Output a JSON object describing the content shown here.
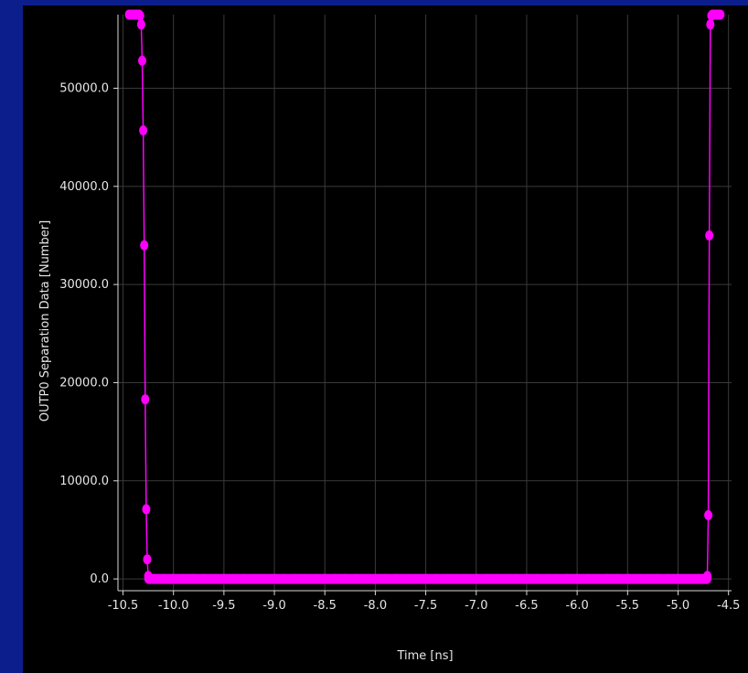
{
  "colors": {
    "frame_background": "#0c1e8c",
    "plot_background": "#000000",
    "series": "#ff00ff",
    "grid": "#3a3a3a",
    "text": "#e6e6e6"
  },
  "chart_data": {
    "type": "scatter",
    "title": "",
    "xlabel": "Time [ns]",
    "ylabel": "OUTP0 Separation Data [Number]",
    "xlim": [
      -10.55,
      -4.47
    ],
    "ylim": [
      -1200,
      57500
    ],
    "grid": true,
    "legend": "none",
    "xticks": [
      -10.5,
      -10.0,
      -9.5,
      -9.0,
      -8.5,
      -8.0,
      -7.5,
      -7.0,
      -6.5,
      -6.0,
      -5.5,
      -5.0,
      -4.5
    ],
    "xtick_labels": [
      "-10.5",
      "-10.0",
      "-9.5",
      "-9.0",
      "-8.5",
      "-8.0",
      "-7.5",
      "-7.0",
      "-6.5",
      "-6.0",
      "-5.5",
      "-5.0",
      "-4.5"
    ],
    "yticks": [
      0,
      10000,
      20000,
      30000,
      40000,
      50000
    ],
    "ytick_labels": [
      "0.0",
      "10000.0",
      "20000.0",
      "30000.0",
      "40000.0",
      "50000.0"
    ],
    "series": [
      {
        "marker": "circle",
        "line": true,
        "points": [
          [
            -10.44,
            57500
          ],
          [
            -10.43,
            57500
          ],
          [
            -10.42,
            57500
          ],
          [
            -10.41,
            57500
          ],
          [
            -10.4,
            57500
          ],
          [
            -10.39,
            57500
          ],
          [
            -10.38,
            57500
          ],
          [
            -10.37,
            57500
          ],
          [
            -10.36,
            57500
          ],
          [
            -10.35,
            57500
          ],
          [
            -10.34,
            57500
          ],
          [
            -10.33,
            57400
          ],
          [
            -10.32,
            56500
          ],
          [
            -10.31,
            52800
          ],
          [
            -10.3,
            45700
          ],
          [
            -10.29,
            34000
          ],
          [
            -10.28,
            18300
          ],
          [
            -10.27,
            7100
          ],
          [
            -10.26,
            2000
          ],
          [
            -10.25,
            300
          ],
          [
            -10.24,
            0
          ],
          [
            -10.2,
            0
          ],
          [
            -10.1,
            0
          ],
          [
            -10.0,
            0
          ],
          [
            -9.9,
            0
          ],
          [
            -9.8,
            0
          ],
          [
            -9.7,
            0
          ],
          [
            -9.6,
            0
          ],
          [
            -9.5,
            0
          ],
          [
            -9.4,
            0
          ],
          [
            -9.3,
            0
          ],
          [
            -9.2,
            0
          ],
          [
            -9.1,
            0
          ],
          [
            -9.0,
            0
          ],
          [
            -8.9,
            0
          ],
          [
            -8.8,
            0
          ],
          [
            -8.7,
            0
          ],
          [
            -8.6,
            0
          ],
          [
            -8.5,
            0
          ],
          [
            -8.4,
            0
          ],
          [
            -8.3,
            0
          ],
          [
            -8.2,
            0
          ],
          [
            -8.1,
            0
          ],
          [
            -8.0,
            0
          ],
          [
            -7.9,
            0
          ],
          [
            -7.8,
            0
          ],
          [
            -7.7,
            0
          ],
          [
            -7.6,
            0
          ],
          [
            -7.5,
            0
          ],
          [
            -7.4,
            0
          ],
          [
            -7.3,
            0
          ],
          [
            -7.2,
            0
          ],
          [
            -7.1,
            0
          ],
          [
            -7.0,
            0
          ],
          [
            -6.9,
            0
          ],
          [
            -6.8,
            0
          ],
          [
            -6.7,
            0
          ],
          [
            -6.6,
            0
          ],
          [
            -6.5,
            0
          ],
          [
            -6.4,
            0
          ],
          [
            -6.3,
            0
          ],
          [
            -6.2,
            0
          ],
          [
            -6.1,
            0
          ],
          [
            -6.0,
            0
          ],
          [
            -5.9,
            0
          ],
          [
            -5.8,
            0
          ],
          [
            -5.7,
            0
          ],
          [
            -5.6,
            0
          ],
          [
            -5.5,
            0
          ],
          [
            -5.4,
            0
          ],
          [
            -5.3,
            0
          ],
          [
            -5.2,
            0
          ],
          [
            -5.1,
            0
          ],
          [
            -5.0,
            0
          ],
          [
            -4.9,
            0
          ],
          [
            -4.8,
            0
          ],
          [
            -4.75,
            0
          ],
          [
            -4.72,
            0
          ],
          [
            -4.71,
            300
          ],
          [
            -4.7,
            6500
          ],
          [
            -4.69,
            35000
          ],
          [
            -4.68,
            56500
          ],
          [
            -4.67,
            57400
          ],
          [
            -4.66,
            57500
          ],
          [
            -4.65,
            57500
          ],
          [
            -4.64,
            57500
          ],
          [
            -4.63,
            57500
          ],
          [
            -4.62,
            57500
          ],
          [
            -4.61,
            57500
          ],
          [
            -4.6,
            57500
          ],
          [
            -4.59,
            57500
          ],
          [
            -4.58,
            57500
          ]
        ]
      }
    ]
  }
}
